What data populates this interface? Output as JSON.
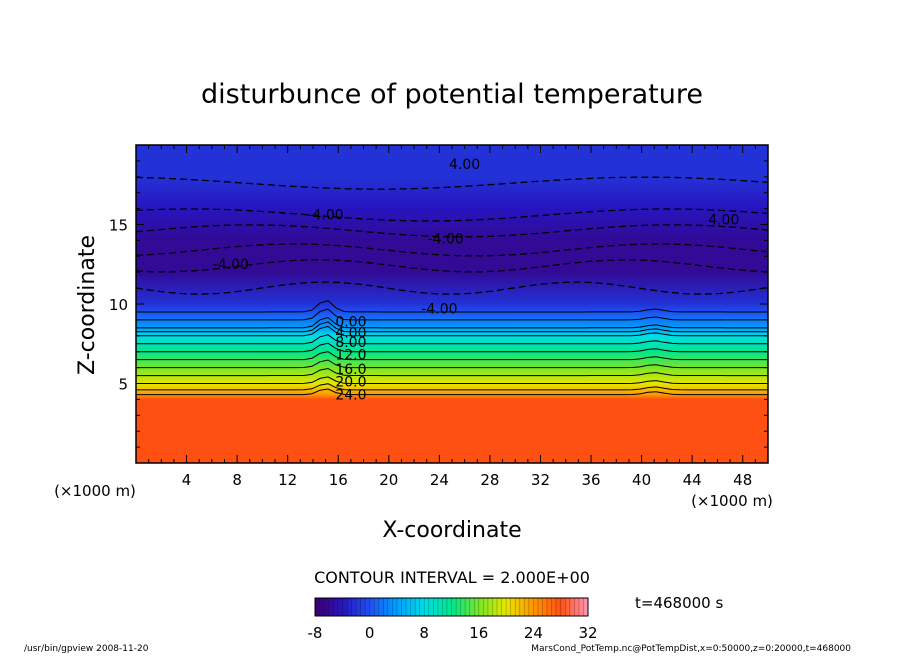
{
  "chart_data": {
    "type": "heatmap",
    "title": "disturbunce of potential temperature",
    "xlabel": "X-coordinate",
    "ylabel": "Z-coordinate",
    "x_unit": "(×1000 m)",
    "y_unit": "(×1000 m)",
    "xlim": [
      0,
      50
    ],
    "ylim": [
      0,
      20
    ],
    "x_ticks": [
      4,
      8,
      12,
      16,
      20,
      24,
      28,
      32,
      36,
      40,
      44,
      48
    ],
    "y_ticks": [
      5,
      10,
      15
    ],
    "grid": false,
    "contour_interval_text": "CONTOUR INTERVAL = 2.000E+00",
    "time_text": "t=468000 s",
    "contour_labels": [
      {
        "text": "4.00",
        "x": 26,
        "y": 18.5
      },
      {
        "text": "-4.00",
        "x": 15,
        "y": 15.3
      },
      {
        "text": "-4.00",
        "x": 24.5,
        "y": 13.8
      },
      {
        "text": "-4.00",
        "x": 7.5,
        "y": 12.2
      },
      {
        "text": "4.00",
        "x": 46.5,
        "y": 15
      },
      {
        "text": "-4.00",
        "x": 24,
        "y": 9.4
      },
      {
        "text": "0.00",
        "x": 17,
        "y": 8.6
      },
      {
        "text": "4.00",
        "x": 17,
        "y": 7.9
      },
      {
        "text": "8.00",
        "x": 17,
        "y": 7.3
      },
      {
        "text": "12.0",
        "x": 17,
        "y": 6.5
      },
      {
        "text": "16.0",
        "x": 17,
        "y": 5.6
      },
      {
        "text": "20.0",
        "x": 17,
        "y": 4.8
      },
      {
        "text": "24.0",
        "x": 17,
        "y": 4.0
      }
    ],
    "colorbar": {
      "min": -8,
      "max": 32,
      "tick_labels": [
        "-8",
        "0",
        "8",
        "16",
        "24",
        "32"
      ]
    },
    "field_profile": {
      "z": [
        0,
        3,
        4,
        4.3,
        4.6,
        5,
        5.5,
        6,
        6.5,
        7,
        7.5,
        8,
        8.5,
        9,
        9.5,
        10,
        12,
        14,
        16,
        18,
        20
      ],
      "value": [
        28,
        28,
        28,
        24,
        22,
        20,
        18,
        16,
        14,
        12,
        10,
        8,
        4,
        2,
        0,
        -2,
        -6,
        -6,
        -4,
        -2,
        -2
      ]
    }
  },
  "footer": {
    "left": "/usr/bin/gpview  2008-11-20",
    "right": "MarsCond_PotTemp.nc@PotTempDist,x=0:50000,z=0:20000,t=468000"
  },
  "colors": {
    "background": "#ffffff",
    "axis": "#000000"
  }
}
